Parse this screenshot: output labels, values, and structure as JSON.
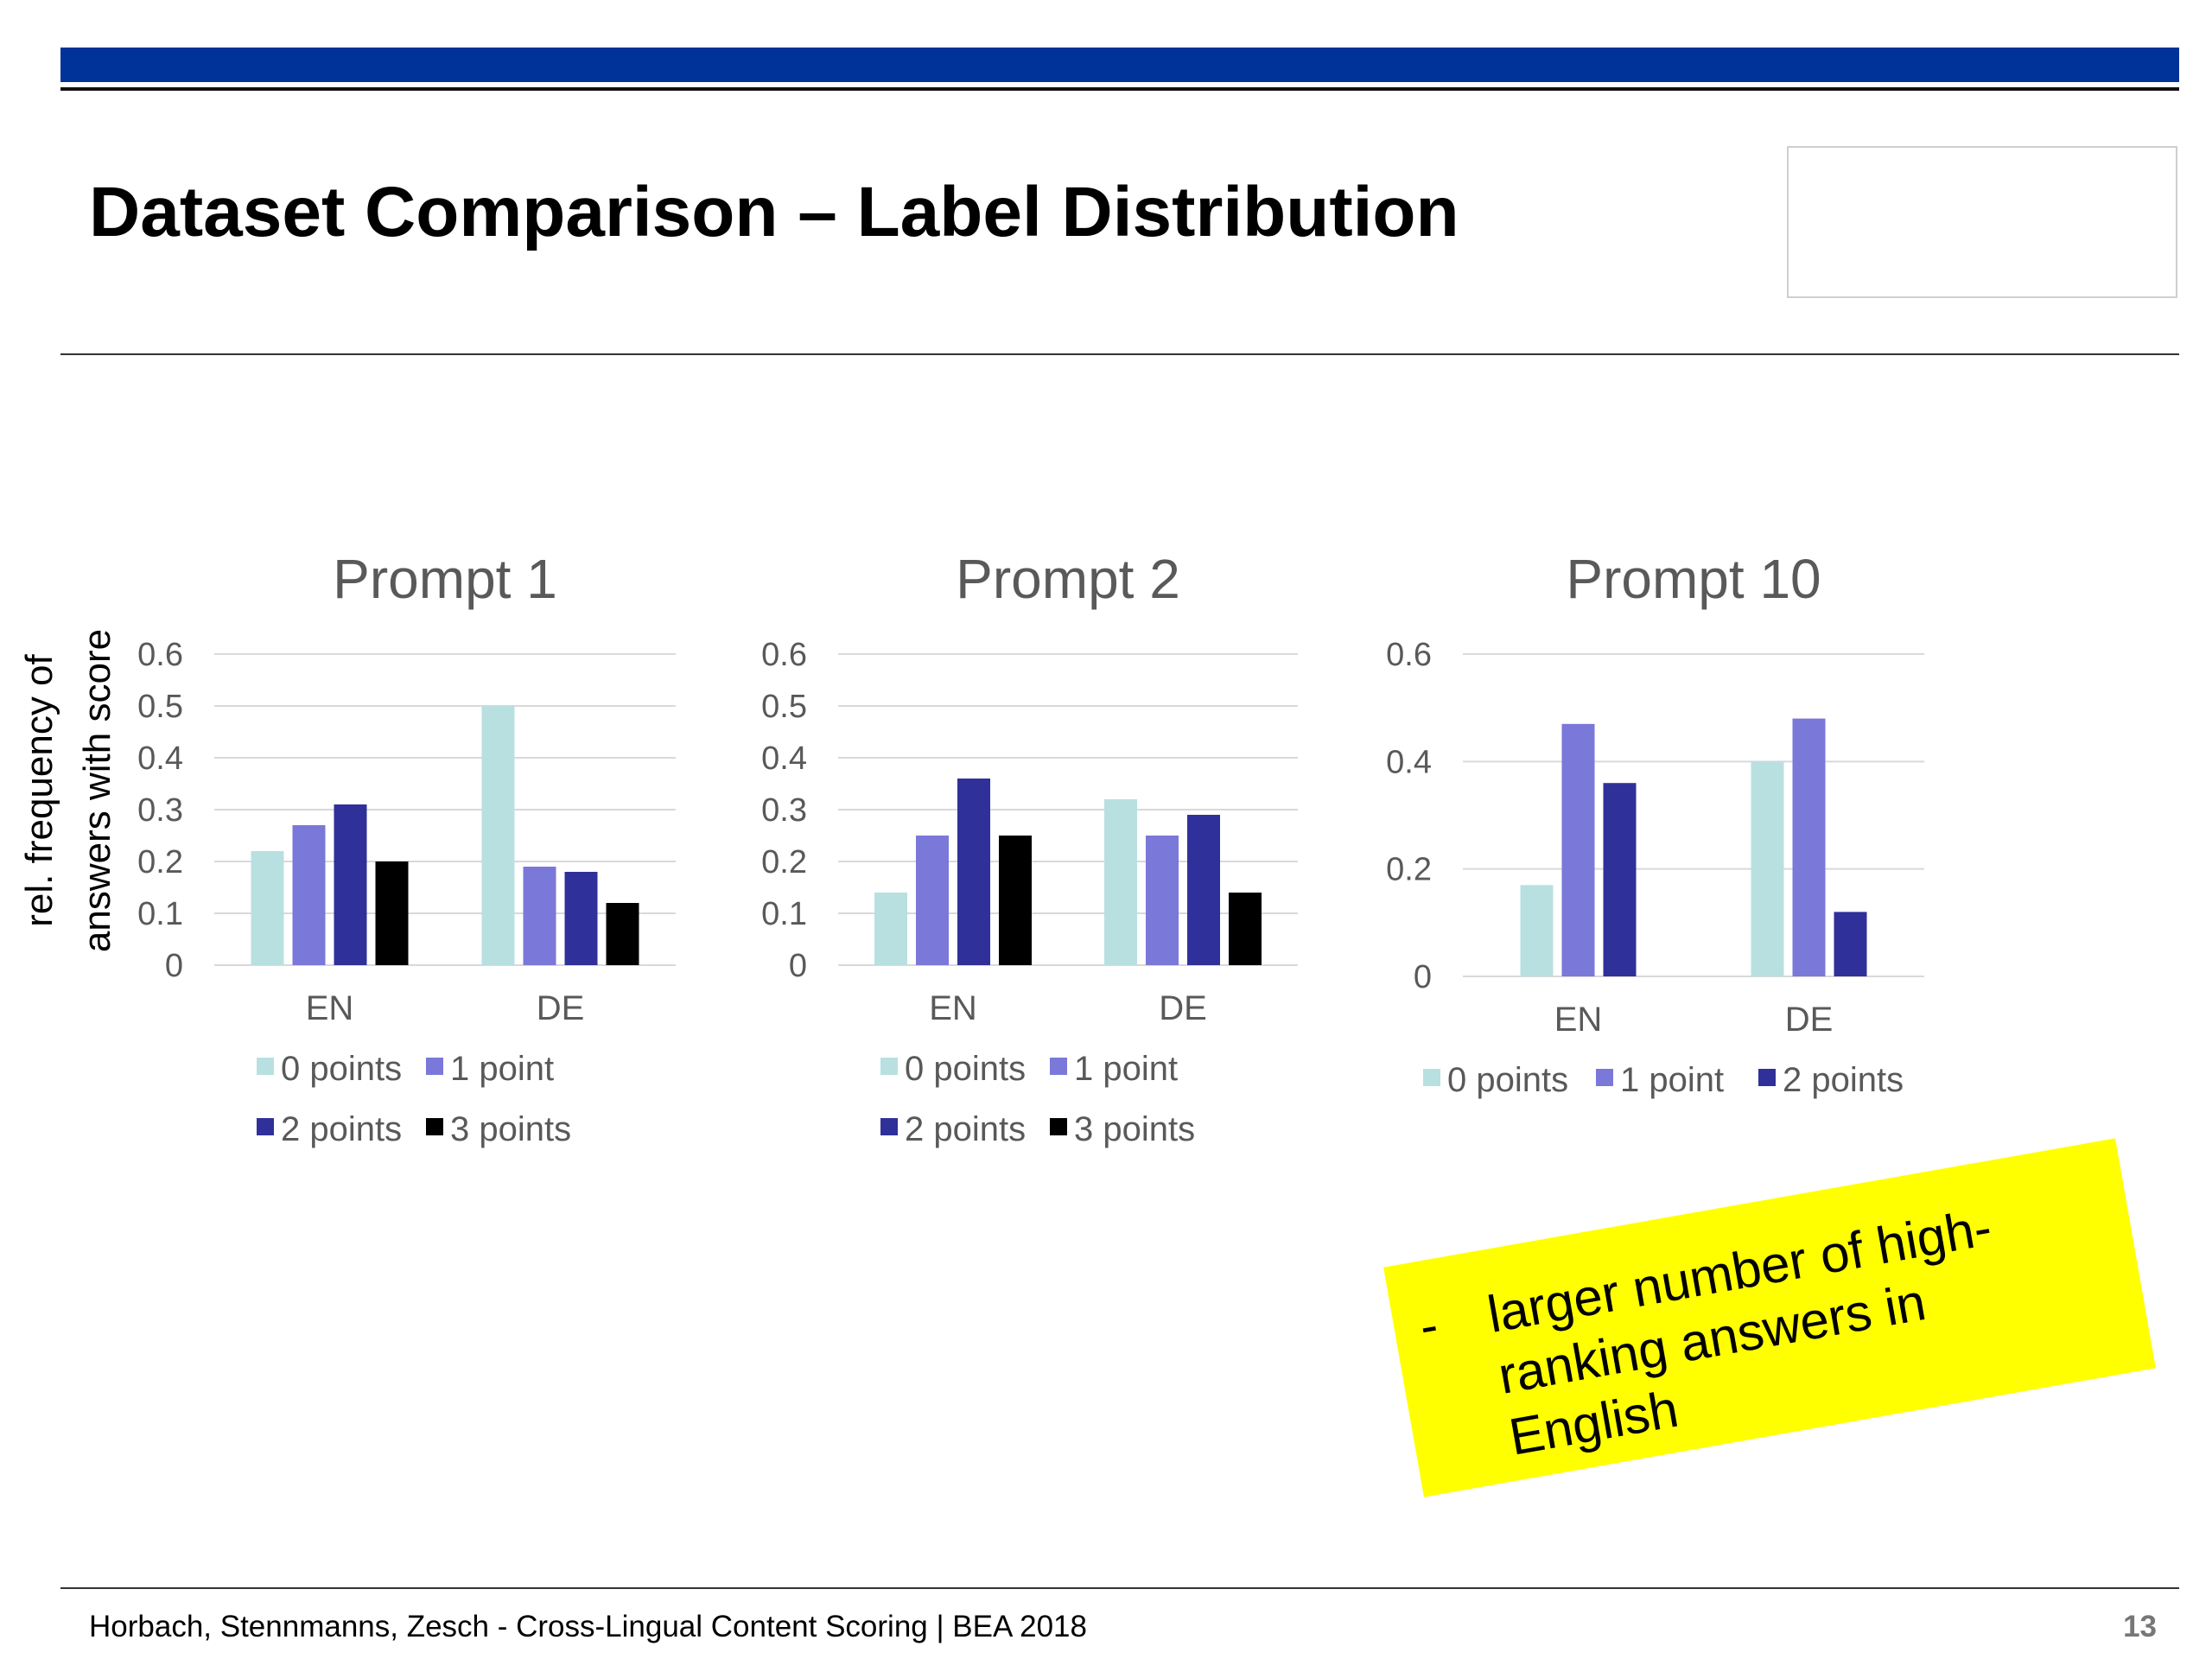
{
  "slide": {
    "title": "Dataset Comparison – Label Distribution",
    "footer": "Horbach, Stennmanns, Zesch - Cross-Lingual Content Scoring | BEA 2018",
    "page_number": "13",
    "note_bullet": "-",
    "note": "larger number of high-ranking answers in English"
  },
  "colors": {
    "0 points": "#b8e0e1",
    "1 point": "#7a78d8",
    "2 points": "#30309a",
    "3 points": "#000000",
    "grid": "#d9d9d9",
    "tick_text": "#595959",
    "title_text": "#595959",
    "accent_bar": "#003399",
    "note_bg": "#ffff00"
  },
  "y_axis_label": [
    "rel. frequency of",
    "answers with score"
  ],
  "chart_data": [
    {
      "type": "bar",
      "title": "Prompt 1",
      "categories": [
        "EN",
        "DE"
      ],
      "series": [
        {
          "name": "0 points",
          "values": [
            0.22,
            0.5
          ]
        },
        {
          "name": "1 point",
          "values": [
            0.27,
            0.19
          ]
        },
        {
          "name": "2 points",
          "values": [
            0.31,
            0.18
          ]
        },
        {
          "name": "3 points",
          "values": [
            0.2,
            0.12
          ]
        }
      ],
      "ylim": [
        0,
        0.6
      ],
      "yticks": [
        "0",
        "0.1",
        "0.2",
        "0.3",
        "0.4",
        "0.5",
        "0.6"
      ],
      "grid": true,
      "legend_position": "bottom"
    },
    {
      "type": "bar",
      "title": "Prompt 2",
      "categories": [
        "EN",
        "DE"
      ],
      "series": [
        {
          "name": "0 points",
          "values": [
            0.14,
            0.32
          ]
        },
        {
          "name": "1 point",
          "values": [
            0.25,
            0.25
          ]
        },
        {
          "name": "2 points",
          "values": [
            0.36,
            0.29
          ]
        },
        {
          "name": "3 points",
          "values": [
            0.25,
            0.14
          ]
        }
      ],
      "ylim": [
        0,
        0.6
      ],
      "yticks": [
        "0",
        "0.1",
        "0.2",
        "0.3",
        "0.4",
        "0.5",
        "0.6"
      ],
      "grid": true,
      "legend_position": "bottom"
    },
    {
      "type": "bar",
      "title": "Prompt 10",
      "categories": [
        "EN",
        "DE"
      ],
      "series": [
        {
          "name": "0 points",
          "values": [
            0.17,
            0.4
          ]
        },
        {
          "name": "1 point",
          "values": [
            0.47,
            0.48
          ]
        },
        {
          "name": "2 points",
          "values": [
            0.36,
            0.12
          ]
        }
      ],
      "ylim": [
        0,
        0.6
      ],
      "yticks": [
        "0",
        "0.2",
        "0.4",
        "0.6"
      ],
      "grid": true,
      "legend_position": "bottom"
    }
  ]
}
